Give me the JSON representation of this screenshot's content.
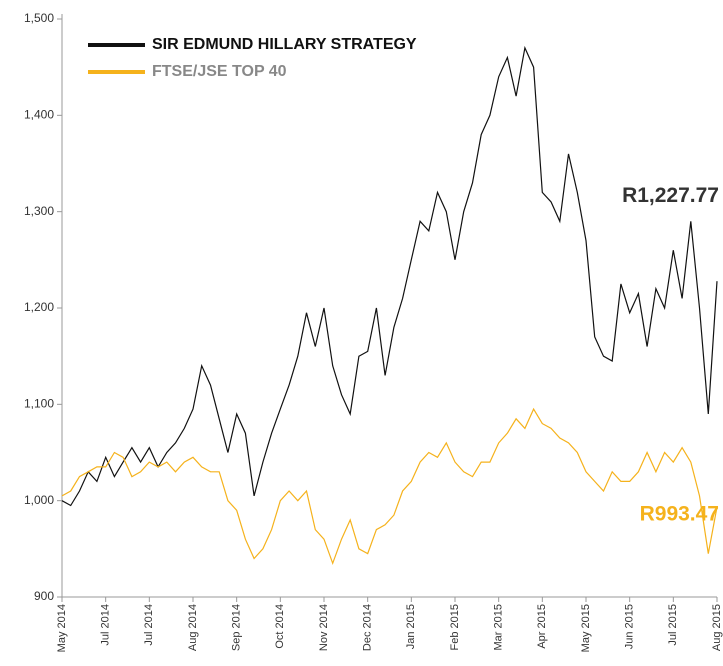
{
  "chart_data": {
    "type": "line",
    "categories": [
      "May 2014",
      null,
      null,
      null,
      null,
      "Jul 2014",
      null,
      null,
      null,
      null,
      "Jul 2014",
      null,
      null,
      null,
      null,
      "Aug 2014",
      null,
      null,
      null,
      null,
      "Sep 2014",
      null,
      null,
      null,
      null,
      "Oct 2014",
      null,
      null,
      null,
      null,
      "Nov 2014",
      null,
      null,
      null,
      null,
      "Dec 2014",
      null,
      null,
      null,
      null,
      "Jan 2015",
      null,
      null,
      null,
      null,
      "Feb 2015",
      null,
      null,
      null,
      null,
      "Mar 2015",
      null,
      null,
      null,
      null,
      "Apr 2015",
      null,
      null,
      null,
      null,
      "May 2015",
      null,
      null,
      null,
      null,
      "Jun 2015",
      null,
      null,
      null,
      null,
      "Jul 2015",
      null,
      null,
      null,
      null,
      "Aug 2015"
    ],
    "series": [
      {
        "name": "SIR EDMUND HILLARY STRATEGY",
        "color": "#111111",
        "values": [
          1000,
          995,
          1010,
          1030,
          1020,
          1045,
          1025,
          1040,
          1055,
          1040,
          1055,
          1035,
          1050,
          1060,
          1075,
          1095,
          1140,
          1120,
          1085,
          1050,
          1090,
          1070,
          1005,
          1040,
          1070,
          1095,
          1120,
          1150,
          1195,
          1160,
          1200,
          1140,
          1110,
          1090,
          1150,
          1155,
          1200,
          1130,
          1180,
          1210,
          1250,
          1290,
          1280,
          1320,
          1300,
          1250,
          1300,
          1330,
          1380,
          1400,
          1440,
          1460,
          1420,
          1470,
          1450,
          1320,
          1310,
          1290,
          1360,
          1320,
          1270,
          1170,
          1150,
          1145,
          1225,
          1195,
          1215,
          1160,
          1220,
          1200,
          1260,
          1210,
          1290,
          1200,
          1090,
          1227.77
        ],
        "value_labels": [
          null,
          null,
          null,
          null,
          null,
          null,
          null,
          null,
          null,
          null,
          null,
          null,
          null,
          null,
          null,
          null,
          null,
          null,
          null,
          null,
          null,
          null,
          null,
          null,
          null,
          null,
          null,
          null,
          null,
          null,
          null,
          null,
          null,
          null,
          null,
          null,
          null,
          null,
          null,
          null,
          null,
          null,
          null,
          null,
          null,
          null,
          null,
          null,
          null,
          null,
          null,
          null,
          null,
          null,
          null,
          null,
          null,
          null,
          null,
          null,
          null,
          null,
          null,
          null,
          null,
          null,
          null,
          null,
          null,
          null,
          null,
          null,
          null,
          null,
          null,
          "R1,227.77"
        ]
      },
      {
        "name": "FTSE/JSE TOP 40",
        "color": "#f5b21c",
        "values": [
          1005,
          1010,
          1025,
          1030,
          1035,
          1035,
          1050,
          1045,
          1025,
          1030,
          1040,
          1035,
          1040,
          1030,
          1040,
          1045,
          1035,
          1030,
          1030,
          1000,
          990,
          960,
          940,
          950,
          970,
          1000,
          1010,
          1000,
          1010,
          970,
          960,
          935,
          960,
          980,
          950,
          945,
          970,
          975,
          985,
          1010,
          1020,
          1040,
          1050,
          1045,
          1060,
          1040,
          1030,
          1025,
          1040,
          1040,
          1060,
          1070,
          1085,
          1075,
          1095,
          1080,
          1075,
          1065,
          1060,
          1050,
          1030,
          1020,
          1010,
          1030,
          1020,
          1020,
          1030,
          1050,
          1030,
          1050,
          1040,
          1055,
          1040,
          1005,
          945,
          993.47
        ],
        "value_labels": [
          null,
          null,
          null,
          null,
          null,
          null,
          null,
          null,
          null,
          null,
          null,
          null,
          null,
          null,
          null,
          null,
          null,
          null,
          null,
          null,
          null,
          null,
          null,
          null,
          null,
          null,
          null,
          null,
          null,
          null,
          null,
          null,
          null,
          null,
          null,
          null,
          null,
          null,
          null,
          null,
          null,
          null,
          null,
          null,
          null,
          null,
          null,
          null,
          null,
          null,
          null,
          null,
          null,
          null,
          null,
          null,
          null,
          null,
          null,
          null,
          null,
          null,
          null,
          null,
          null,
          null,
          null,
          null,
          null,
          null,
          null,
          null,
          null,
          null,
          null,
          "R993.47"
        ]
      }
    ],
    "ylim": [
      900,
      1500
    ],
    "yticks": [
      900,
      {
        "value": 1000,
        "label": "1,000"
      },
      {
        "value": 1100,
        "label": "1,100"
      },
      {
        "value": 1200,
        "label": "1,200"
      },
      {
        "value": 1300,
        "label": "1,300"
      },
      {
        "value": 1400,
        "label": "1,400"
      },
      {
        "value": 1500,
        "label": "1,500"
      }
    ],
    "grid": false,
    "legend": "top-left"
  }
}
